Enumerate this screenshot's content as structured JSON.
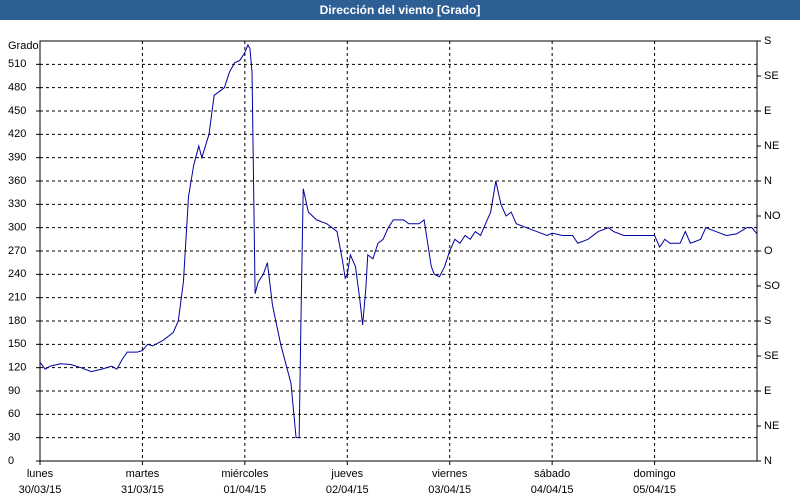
{
  "chart_data": {
    "type": "line",
    "title": "Dirección del viento [Grado]",
    "y_label": "Grado",
    "x": [
      0,
      0.05,
      0.1,
      0.2,
      0.3,
      0.4,
      0.5,
      0.6,
      0.7,
      0.75,
      0.8,
      0.85,
      0.95,
      1.0,
      1.05,
      1.1,
      1.2,
      1.3,
      1.35,
      1.4,
      1.45,
      1.5,
      1.55,
      1.58,
      1.65,
      1.7,
      1.75,
      1.8,
      1.85,
      1.9,
      1.95,
      2.0,
      2.03,
      2.05,
      2.07,
      2.1,
      2.13,
      2.18,
      2.22,
      2.27,
      2.35,
      2.45,
      2.5,
      2.53,
      2.55,
      2.57,
      2.62,
      2.7,
      2.8,
      2.85,
      2.9,
      2.95,
      2.98,
      3.0,
      3.03,
      3.08,
      3.12,
      3.15,
      3.18,
      3.2,
      3.25,
      3.3,
      3.35,
      3.4,
      3.45,
      3.55,
      3.6,
      3.7,
      3.75,
      3.82,
      3.85,
      3.9,
      3.95,
      4.0,
      4.05,
      4.1,
      4.15,
      4.2,
      4.25,
      4.3,
      4.35,
      4.4,
      4.45,
      4.5,
      4.55,
      4.6,
      4.65,
      4.75,
      4.85,
      4.95,
      5.0,
      5.1,
      5.2,
      5.25,
      5.35,
      5.45,
      5.55,
      5.6,
      5.7,
      5.8,
      5.9,
      6.0,
      6.05,
      6.1,
      6.15,
      6.25,
      6.3,
      6.35,
      6.45,
      6.5,
      6.6,
      6.7,
      6.8,
      6.9,
      6.95,
      7.0
    ],
    "series": [
      {
        "name": "Dirección del viento",
        "color": "#0000a0",
        "values": [
          127,
          118,
          122,
          125,
          124,
          120,
          115,
          118,
          122,
          118,
          130,
          140,
          140,
          142,
          150,
          148,
          155,
          165,
          180,
          230,
          340,
          380,
          405,
          390,
          420,
          470,
          475,
          480,
          500,
          512,
          515,
          525,
          535,
          530,
          500,
          215,
          230,
          240,
          255,
          200,
          150,
          100,
          30,
          30,
          200,
          350,
          320,
          310,
          305,
          300,
          295,
          260,
          235,
          240,
          265,
          250,
          210,
          175,
          220,
          265,
          260,
          280,
          285,
          300,
          310,
          310,
          305,
          305,
          310,
          250,
          240,
          237,
          250,
          270,
          285,
          280,
          290,
          285,
          295,
          290,
          305,
          320,
          360,
          330,
          315,
          320,
          305,
          300,
          295,
          290,
          293,
          290,
          290,
          280,
          285,
          295,
          300,
          295,
          290,
          290,
          290,
          290,
          275,
          285,
          280,
          280,
          295,
          280,
          285,
          300,
          295,
          290,
          292,
          300,
          300,
          292
        ]
      }
    ],
    "xlim": [
      0,
      7
    ],
    "xticks": [
      {
        "value": 0,
        "label": "lunes"
      },
      {
        "value": 1,
        "label": "martes"
      },
      {
        "value": 2,
        "label": "miércoles"
      },
      {
        "value": 3,
        "label": "jueves"
      },
      {
        "value": 4,
        "label": "viernes"
      },
      {
        "value": 5,
        "label": "sábado"
      },
      {
        "value": 6,
        "label": "domingo"
      }
    ],
    "xtick_dates": [
      "30/03/15",
      "31/03/15",
      "01/04/15",
      "02/04/15",
      "03/04/15",
      "04/04/15",
      "05/04/15"
    ],
    "ylim": [
      0,
      540
    ],
    "yticks": [
      0,
      30,
      60,
      90,
      120,
      150,
      180,
      210,
      240,
      270,
      300,
      330,
      360,
      390,
      420,
      450,
      480,
      510
    ],
    "y2lim": [
      0,
      540
    ],
    "y2ticks": [
      {
        "value": 0,
        "label": "N"
      },
      {
        "value": 45,
        "label": "NE"
      },
      {
        "value": 90,
        "label": "E"
      },
      {
        "value": 135,
        "label": "SE"
      },
      {
        "value": 180,
        "label": "S"
      },
      {
        "value": 225,
        "label": "SO"
      },
      {
        "value": 270,
        "label": "O"
      },
      {
        "value": 315,
        "label": "NO"
      },
      {
        "value": 360,
        "label": "N"
      },
      {
        "value": 405,
        "label": "NE"
      },
      {
        "value": 450,
        "label": "E"
      },
      {
        "value": 495,
        "label": "SE"
      },
      {
        "value": 540,
        "label": "S"
      }
    ],
    "grid": true
  }
}
